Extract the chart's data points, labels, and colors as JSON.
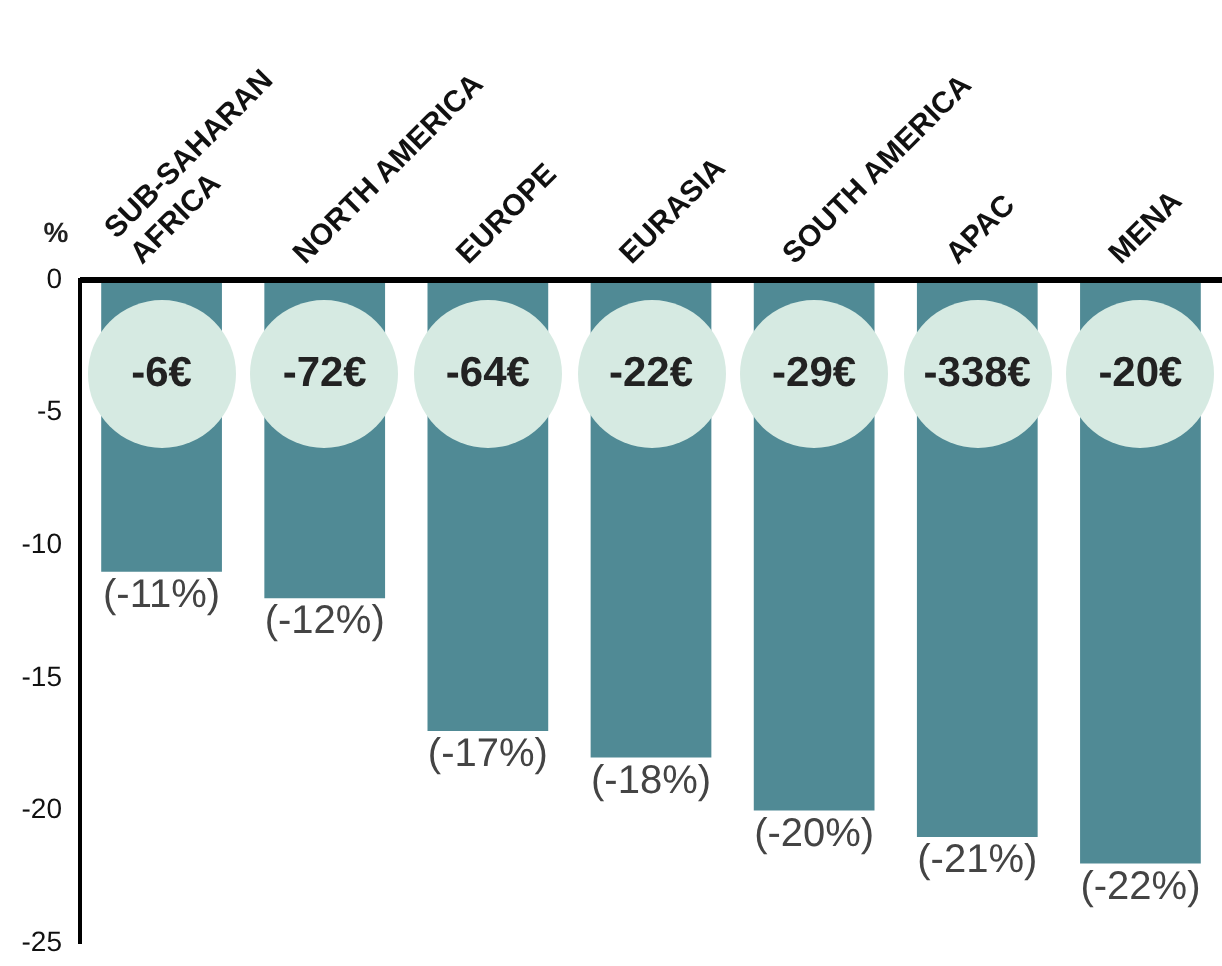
{
  "chart_data": {
    "type": "bar",
    "ylabel": "%",
    "categories": [
      "SUB-SAHARAN\nAFRICA",
      "NORTH AMERICA",
      "EUROPE",
      "EURASIA",
      "SOUTH AMERICA",
      "APAC",
      "MENA"
    ],
    "values": [
      -11,
      -12,
      -17,
      -18,
      -20,
      -21,
      -22
    ],
    "color": "#508a95",
    "value_labels": [
      "(-11%)",
      "(-12%)",
      "(-17%)",
      "(-18%)",
      "(-20%)",
      "(-21%)",
      "(-22%)"
    ],
    "ylim": [
      -25,
      0
    ],
    "yticks": [
      0,
      -5,
      -10,
      -15,
      -20,
      -25
    ],
    "grid": false,
    "legend": false,
    "annotations": [
      "-6€",
      "-72€",
      "-64€",
      "-22€",
      "-29€",
      "-338€",
      "-20€"
    ]
  }
}
